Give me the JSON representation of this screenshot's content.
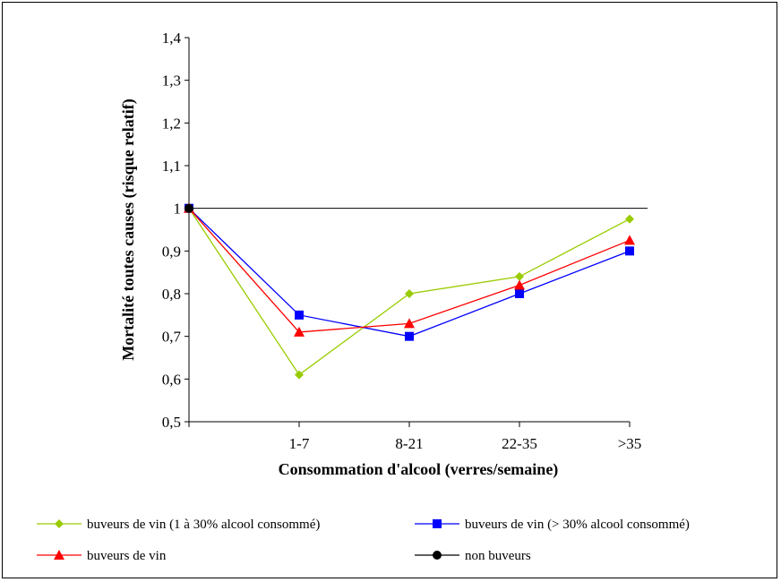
{
  "chart_data": {
    "type": "line",
    "categories": [
      "",
      "1-7",
      "8-21",
      "22-35",
      ">35"
    ],
    "xlabel": "Consommation d'alcool (verres/semaine)",
    "ylabel": "Mortalité toutes causes (risque relatif)",
    "ylim": [
      0.5,
      1.4
    ],
    "yticks": [
      "0,5",
      "0,6",
      "0,7",
      "0,8",
      "0,9",
      "1",
      "1,1",
      "1,2",
      "1,3",
      "1,4"
    ],
    "reference_line": 1.0,
    "legend_position": "bottom",
    "series": [
      {
        "name": "buveurs de vin (1 à 30% alcool consommé)",
        "color": "#99CC00",
        "marker": "diamond",
        "values": [
          1.0,
          0.61,
          0.8,
          0.84,
          0.975
        ]
      },
      {
        "name": "buveurs de vin (> 30% alcool consommé)",
        "color": "#0000FF",
        "marker": "square",
        "values": [
          1.0,
          0.75,
          0.7,
          0.8,
          0.9
        ]
      },
      {
        "name": "buveurs de vin",
        "color": "#FF0000",
        "marker": "triangle",
        "values": [
          1.0,
          0.71,
          0.73,
          0.82,
          0.925
        ]
      },
      {
        "name": "non buveurs",
        "color": "#000000",
        "marker": "circle",
        "values": [
          1.0,
          null,
          null,
          null,
          null
        ]
      }
    ]
  }
}
